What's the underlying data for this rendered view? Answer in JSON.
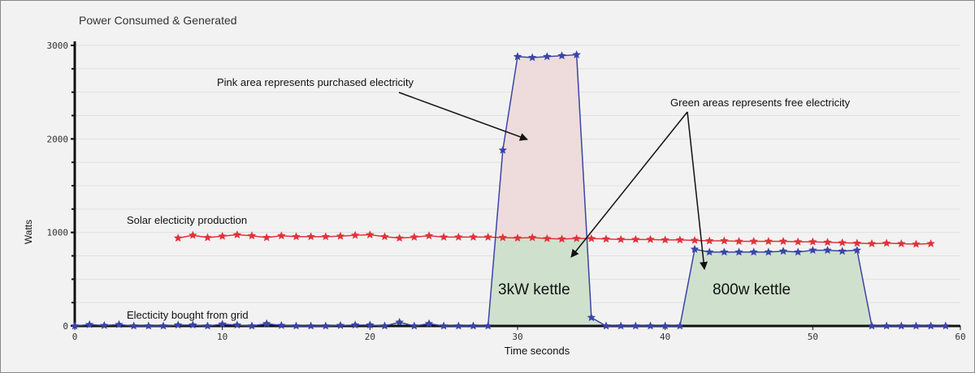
{
  "chart_data": {
    "type": "area",
    "title": "Power Consumed & Generated",
    "xlabel": "Time seconds",
    "ylabel": "Watts",
    "xlim": [
      0,
      60
    ],
    "ylim": [
      0,
      3000
    ],
    "x_ticks": [
      0,
      10,
      20,
      30,
      40,
      50,
      60
    ],
    "y_ticks": [
      0,
      1000,
      2000,
      3000
    ],
    "grid_step_y": 250,
    "series": [
      {
        "name": "Electicity bought from grid",
        "color": "#3a44a8",
        "x": [
          0,
          1,
          2,
          3,
          4,
          5,
          6,
          7,
          8,
          9,
          10,
          11,
          12,
          13,
          14,
          15,
          16,
          17,
          18,
          19,
          20,
          21,
          22,
          23,
          24,
          25,
          26,
          27,
          28,
          29,
          30,
          31,
          32,
          33,
          34,
          35,
          36,
          37,
          38,
          39,
          40,
          41,
          42,
          43,
          44,
          45,
          46,
          47,
          48,
          49,
          50,
          51,
          52,
          53,
          54,
          55,
          56,
          57,
          58,
          59
        ],
        "y": [
          0,
          15,
          5,
          15,
          0,
          0,
          0,
          10,
          10,
          0,
          20,
          10,
          0,
          25,
          5,
          0,
          0,
          0,
          5,
          10,
          10,
          0,
          40,
          0,
          25,
          0,
          0,
          0,
          0,
          1880,
          2880,
          2870,
          2880,
          2890,
          2900,
          90,
          0,
          0,
          0,
          0,
          0,
          0,
          820,
          790,
          790,
          790,
          790,
          790,
          800,
          790,
          810,
          810,
          800,
          810,
          0,
          0,
          0,
          0,
          0,
          0
        ]
      },
      {
        "name": "Solar electicity production",
        "color": "#e0333b",
        "x": [
          7,
          8,
          9,
          10,
          11,
          12,
          13,
          14,
          15,
          16,
          17,
          18,
          19,
          20,
          21,
          22,
          23,
          24,
          25,
          26,
          27,
          28,
          29,
          30,
          31,
          32,
          33,
          34,
          35,
          36,
          37,
          38,
          39,
          40,
          41,
          42,
          43,
          44,
          45,
          46,
          47,
          48,
          49,
          50,
          51,
          52,
          53,
          54,
          55,
          56,
          57,
          58
        ],
        "y": [
          940,
          970,
          945,
          960,
          975,
          965,
          945,
          965,
          955,
          955,
          955,
          960,
          970,
          975,
          955,
          940,
          950,
          965,
          950,
          950,
          950,
          950,
          945,
          940,
          945,
          935,
          930,
          935,
          935,
          930,
          925,
          925,
          925,
          920,
          920,
          915,
          910,
          910,
          905,
          905,
          905,
          905,
          900,
          900,
          895,
          890,
          885,
          880,
          885,
          880,
          875,
          880
        ]
      }
    ],
    "fills": {
      "purchased_color": "#eddcdb",
      "free_color": "#cfe1cd"
    },
    "annotations": {
      "pink": "Pink area represents  purchased electricity",
      "green": "Green areas represents free electricity",
      "kettle1": "3kW kettle",
      "kettle2": "800w kettle",
      "solar_label": "Solar electicity production",
      "grid_label": "Electicity bought from grid"
    }
  }
}
